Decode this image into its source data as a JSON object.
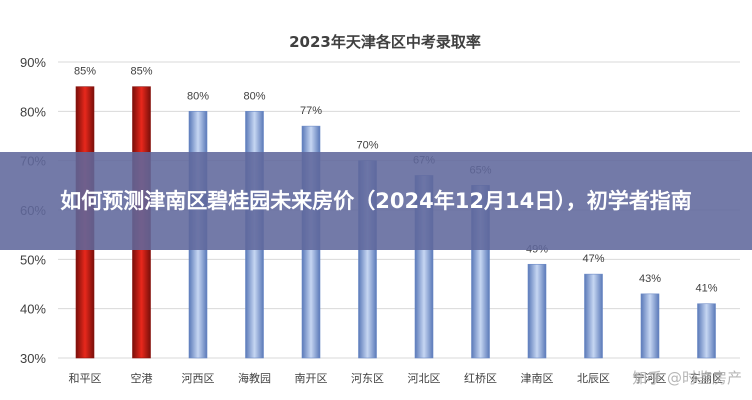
{
  "overlay": {
    "headline": "如何预测津南区碧桂园未来房价（2024年12月14日），初学者指南"
  },
  "watermark": {
    "text": "知乎 @时鉴房产"
  },
  "colors": {
    "red_bar": "#d9261c",
    "blue_bar": "#7f9fd6",
    "grid": "#d9d9d9",
    "text": "#404040",
    "overlay": "#60689c"
  },
  "chart_data": {
    "type": "bar",
    "title": "2023年天津各区中考录取率",
    "xlabel": "",
    "ylabel": "",
    "ylim": [
      30,
      90
    ],
    "yticks": [
      30,
      40,
      50,
      60,
      70,
      80,
      90
    ],
    "ytick_labels": [
      "30%",
      "40%",
      "50%",
      "60%",
      "70%",
      "80%",
      "90%"
    ],
    "grid": true,
    "categories": [
      "和平区",
      "空港",
      "河西区",
      "海教园",
      "南开区",
      "河东区",
      "河北区",
      "红桥区",
      "津南区",
      "北辰区",
      "宁河区",
      "东丽区"
    ],
    "values": [
      85,
      85,
      80,
      80,
      77,
      70,
      67,
      65,
      49,
      47,
      43,
      41
    ],
    "value_labels": [
      "85%",
      "85%",
      "80%",
      "80%",
      "77%",
      "70%",
      "67%",
      "65%",
      "49%",
      "47%",
      "43%",
      "41%"
    ],
    "highlight_count": 2
  }
}
